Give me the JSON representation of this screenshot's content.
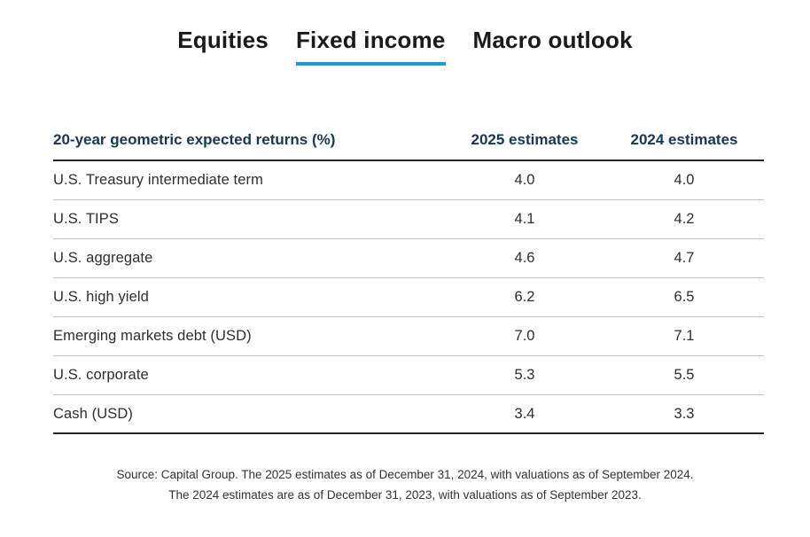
{
  "tabs": [
    {
      "label": "Equities",
      "active": false
    },
    {
      "label": "Fixed income",
      "active": true
    },
    {
      "label": "Macro outlook",
      "active": false
    }
  ],
  "colors": {
    "tab_active_underline": "#1d9bd4",
    "header_navy": "#17365d",
    "body_text": "#2e2e2e",
    "dark_rule": "#1f2733",
    "light_rule": "#c4c6c8"
  },
  "table": {
    "header": {
      "label": "20-year geometric expected returns (%)",
      "col_2025": "2025 estimates",
      "col_2024": "2024 estimates"
    },
    "rows": [
      {
        "label": "U.S. Treasury intermediate term",
        "est_2025": "4.0",
        "est_2024": "4.0"
      },
      {
        "label": "U.S. TIPS",
        "est_2025": "4.1",
        "est_2024": "4.2"
      },
      {
        "label": "U.S. aggregate",
        "est_2025": "4.6",
        "est_2024": "4.7"
      },
      {
        "label": "U.S. high yield",
        "est_2025": "6.2",
        "est_2024": "6.5"
      },
      {
        "label": "Emerging markets debt (USD)",
        "est_2025": "7.0",
        "est_2024": "7.1"
      },
      {
        "label": "U.S. corporate",
        "est_2025": "5.3",
        "est_2024": "5.5"
      },
      {
        "label": "Cash (USD)",
        "est_2025": "3.4",
        "est_2024": "3.3"
      }
    ]
  },
  "source": {
    "line1": "Source: Capital Group. The 2025 estimates as of December 31, 2024, with valuations as of September 2024.",
    "line2": "The 2024 estimates are as of December 31, 2023, with valuations as of September 2023."
  },
  "chart_data": {
    "type": "table",
    "title": "20-year geometric expected returns (%)",
    "columns": [
      "20-year geometric expected returns (%)",
      "2025 estimates",
      "2024 estimates"
    ],
    "rows": [
      [
        "U.S. Treasury intermediate term",
        4.0,
        4.0
      ],
      [
        "U.S. TIPS",
        4.1,
        4.2
      ],
      [
        "U.S. aggregate",
        4.6,
        4.7
      ],
      [
        "U.S. high yield",
        6.2,
        6.5
      ],
      [
        "Emerging markets debt (USD)",
        7.0,
        7.1
      ],
      [
        "U.S. corporate",
        5.3,
        5.5
      ],
      [
        "Cash (USD)",
        3.4,
        3.3
      ]
    ]
  }
}
